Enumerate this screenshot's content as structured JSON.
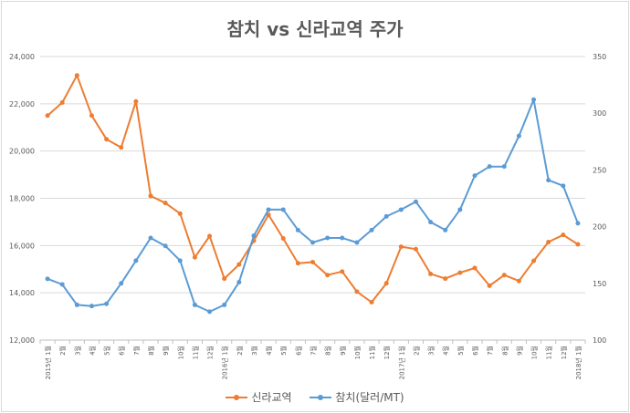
{
  "chart_data": {
    "type": "line",
    "title": "참치 vs 신라교역 주가",
    "categories": [
      "2015년 1월",
      "2월",
      "3월",
      "4월",
      "5월",
      "6월",
      "7월",
      "8월",
      "9월",
      "10월",
      "11월",
      "12월",
      "2016년 1월",
      "2월",
      "3월",
      "4월",
      "5월",
      "6월",
      "7월",
      "8월",
      "9월",
      "10월",
      "11월",
      "12월",
      "2017년 1월",
      "2월",
      "3월",
      "4월",
      "5월",
      "6월",
      "7월",
      "8월",
      "9월",
      "10월",
      "11월",
      "12월",
      "2018년 1월"
    ],
    "y_left": {
      "min": 12000,
      "max": 24000,
      "ticks": [
        "12,000",
        "14,000",
        "16,000",
        "18,000",
        "20,000",
        "22,000",
        "24,000"
      ]
    },
    "y_right": {
      "min": 100,
      "max": 350,
      "ticks": [
        "100",
        "150",
        "200",
        "250",
        "300",
        "350"
      ]
    },
    "series": [
      {
        "name": "신라교역",
        "axis": "left",
        "color": "#ed7d31",
        "values": [
          21500,
          22050,
          23200,
          21500,
          20500,
          20150,
          22100,
          18100,
          17800,
          17350,
          15500,
          16400,
          14600,
          15200,
          16200,
          17300,
          16300,
          15250,
          15300,
          14750,
          14900,
          14050,
          13600,
          14400,
          15950,
          15850,
          14800,
          14600,
          14850,
          15050,
          14300,
          14750,
          14500,
          15350,
          16150,
          16450,
          16050
        ]
      },
      {
        "name": "참치(달러/MT)",
        "axis": "right",
        "color": "#5b9bd5",
        "values": [
          154,
          149,
          131,
          130,
          132,
          150,
          170,
          190,
          183,
          170,
          131,
          125,
          131,
          151,
          192,
          215,
          215,
          197,
          186,
          190,
          190,
          186,
          197,
          209,
          215,
          222,
          204,
          197,
          215,
          245,
          253,
          253,
          280,
          312,
          241,
          236,
          203
        ]
      }
    ],
    "legend_position": "bottom",
    "gridlines": true
  }
}
